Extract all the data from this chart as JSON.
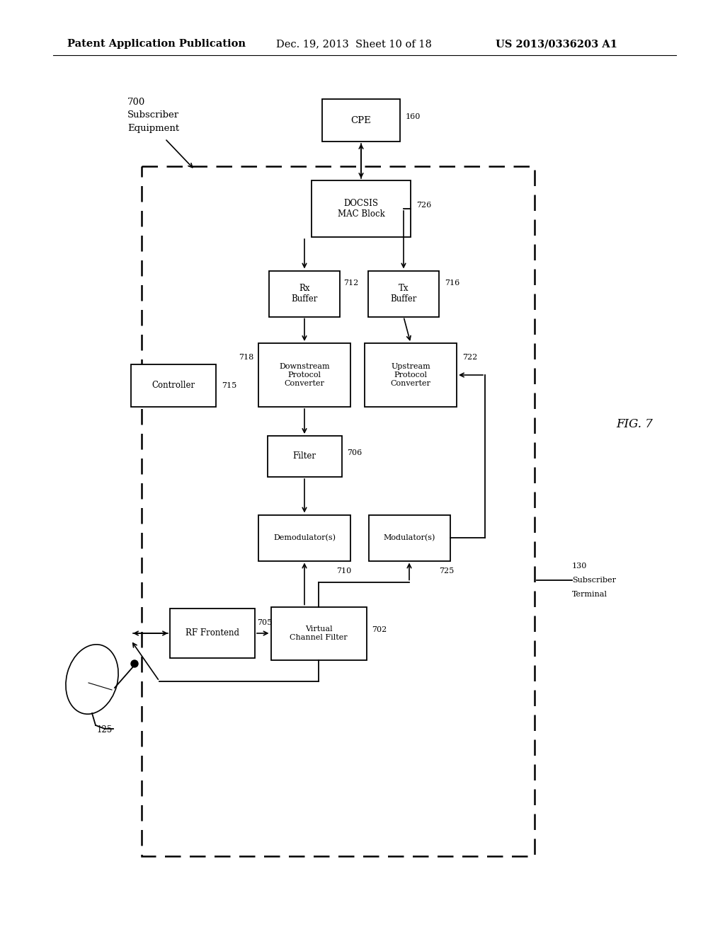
{
  "header_left": "Patent Application Publication",
  "header_mid": "Dec. 19, 2013  Sheet 10 of 18",
  "header_right": "US 2013/0336203 A1",
  "fig_label": "FIG. 7",
  "background": "#ffffff"
}
